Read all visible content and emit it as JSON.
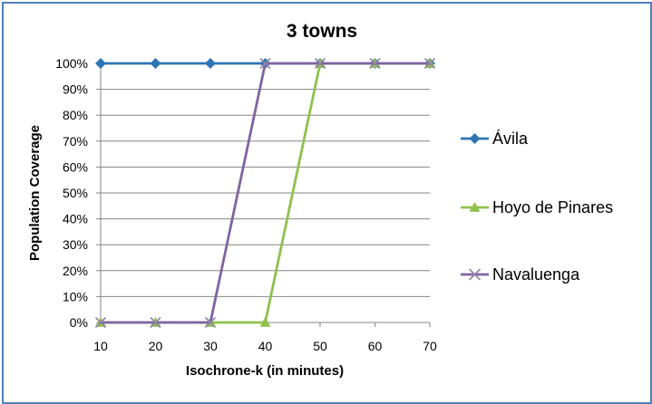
{
  "chart_data": {
    "type": "line",
    "title": "3 towns",
    "xlabel": "Isochrone-k (in minutes)",
    "ylabel": "Population Coverage",
    "x": [
      10,
      20,
      30,
      40,
      50,
      60,
      70
    ],
    "x_tick_labels": [
      "10",
      "20",
      "30",
      "40",
      "50",
      "60",
      "70"
    ],
    "y_tick_labels": [
      "0%",
      "10%",
      "20%",
      "30%",
      "40%",
      "50%",
      "60%",
      "70%",
      "80%",
      "90%",
      "100%"
    ],
    "ylim": [
      0,
      100
    ],
    "grid": true,
    "legend_position": "right",
    "series": [
      {
        "name": "Ávila",
        "color": "#2e75b6",
        "marker": "diamond",
        "values": [
          100,
          100,
          100,
          100,
          100,
          100,
          100
        ]
      },
      {
        "name": "Hoyo de Pinares",
        "color": "#8fc14c",
        "marker": "triangle",
        "values": [
          0,
          0,
          0,
          0,
          100,
          100,
          100
        ]
      },
      {
        "name": "Navaluenga",
        "color": "#8064a2",
        "marker": "x",
        "values": [
          0,
          0,
          0,
          100,
          100,
          100,
          100
        ]
      }
    ]
  }
}
